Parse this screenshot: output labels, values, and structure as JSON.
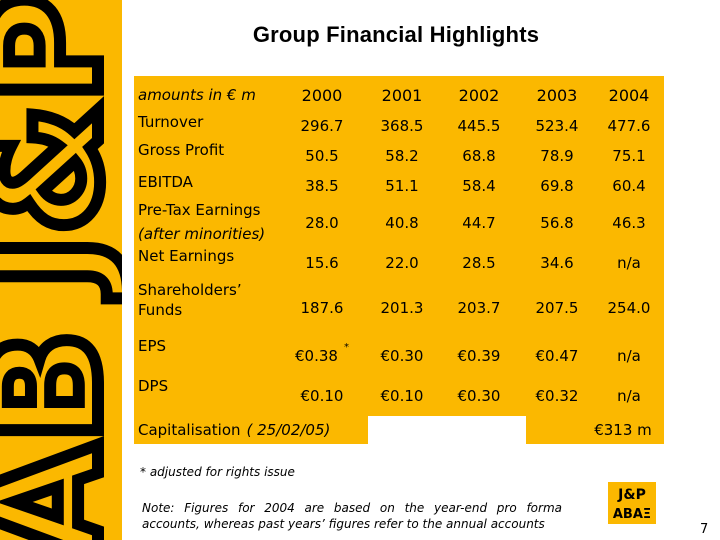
{
  "title": "Group Financial Highlights",
  "table": {
    "header": {
      "label": "amounts in € m",
      "years": [
        "2000",
        "2001",
        "2002",
        "2003",
        "2004"
      ]
    },
    "rows": [
      {
        "label": "Turnover",
        "sub": "",
        "values": [
          "296.7",
          "368.5",
          "445.5",
          "523.4",
          "477.6"
        ]
      },
      {
        "label": "Gross Profit",
        "sub": "",
        "values": [
          "50.5",
          "58.2",
          "68.8",
          "78.9",
          "75.1"
        ]
      },
      {
        "label": "EBITDA",
        "sub": "",
        "values": [
          "38.5",
          "51.1",
          "58.4",
          "69.8",
          "60.4"
        ]
      },
      {
        "label": "Pre-Tax Earnings",
        "sub": "(after minorities)",
        "values": [
          "28.0",
          "40.8",
          "44.7",
          "56.8",
          "46.3"
        ]
      },
      {
        "label": "Net Earnings",
        "sub": "",
        "values": [
          "15.6",
          "22.0",
          "28.5",
          "34.6",
          "n/a"
        ]
      },
      {
        "label": "Shareholders’",
        "sub": "Funds",
        "values": [
          "187.6",
          "201.3",
          "203.7",
          "207.5",
          "254.0"
        ]
      },
      {
        "label": "EPS",
        "sub": "",
        "values": [
          "€0.38",
          "€0.30",
          "€0.39",
          "€0.47",
          "n/a"
        ],
        "marker": "*"
      },
      {
        "label": "DPS",
        "sub": "",
        "values": [
          "€0.10",
          "€0.10",
          "€0.30",
          "€0.32",
          "n/a"
        ]
      }
    ],
    "capitalisation": {
      "label": "Capitalisation",
      "date": "( 25/02/05)",
      "value": "€313 m"
    }
  },
  "footnote": "* adjusted for rights issue",
  "note": {
    "prefix": "Note",
    "text": ": Figures for 2004 are based on the year-end pro forma accounts, whereas past years’ figures refer to the annual accounts"
  },
  "logo": {
    "line1": "J&P",
    "line2": "ΑΒΑΞ"
  },
  "sidebar_logo": {
    "line1": "J&P",
    "line2": "ΑΒ"
  },
  "page_number": "7"
}
